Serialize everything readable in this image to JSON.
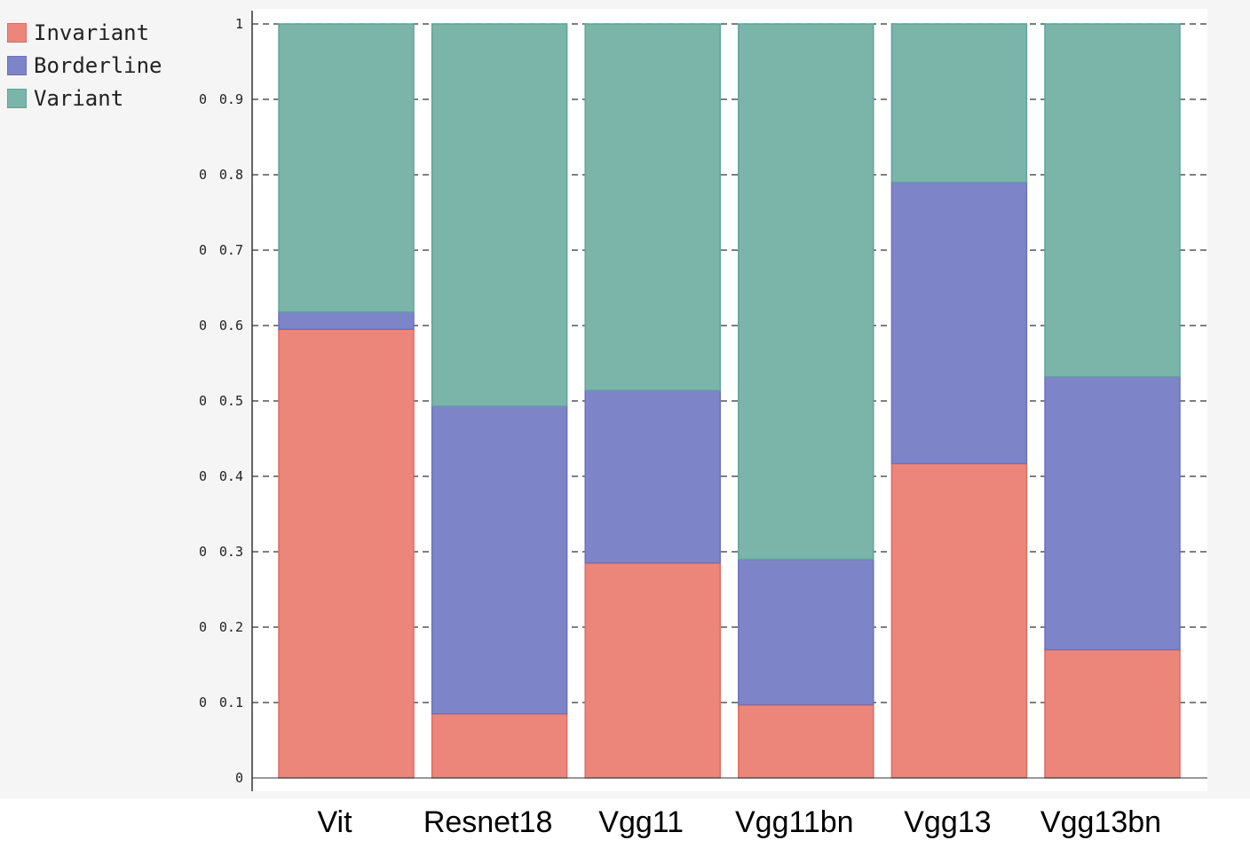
{
  "chart_data": {
    "type": "bar",
    "stacked": true,
    "title": "",
    "xlabel": "",
    "ylabel": "",
    "ylim": [
      0,
      1
    ],
    "yticks": [
      "0",
      "0.1",
      "0.2",
      "0.3",
      "0.4",
      "0.5",
      "0.6",
      "0.7",
      "0.8",
      "0.9",
      "1"
    ],
    "grid": "horizontal dashed",
    "legend_position": "top-left",
    "categories": [
      "Vit",
      "Resnet18",
      "Vgg11",
      "Vgg11bn",
      "Vgg13",
      "Vgg13bn"
    ],
    "series": [
      {
        "name": "Invariant",
        "color": "#ec867a",
        "stroke": "#e06a5e",
        "values": [
          0.595,
          0.085,
          0.285,
          0.097,
          0.417,
          0.17
        ]
      },
      {
        "name": "Borderline",
        "color": "#7d85c8",
        "stroke": "#6a72c0",
        "values": [
          0.023,
          0.408,
          0.229,
          0.193,
          0.373,
          0.362
        ]
      },
      {
        "name": "Variant",
        "color": "#7bb5aa",
        "stroke": "#5fa596",
        "values": [
          0.382,
          0.507,
          0.486,
          0.71,
          0.21,
          0.468
        ]
      }
    ],
    "clipped_tick_glyph": "0"
  }
}
